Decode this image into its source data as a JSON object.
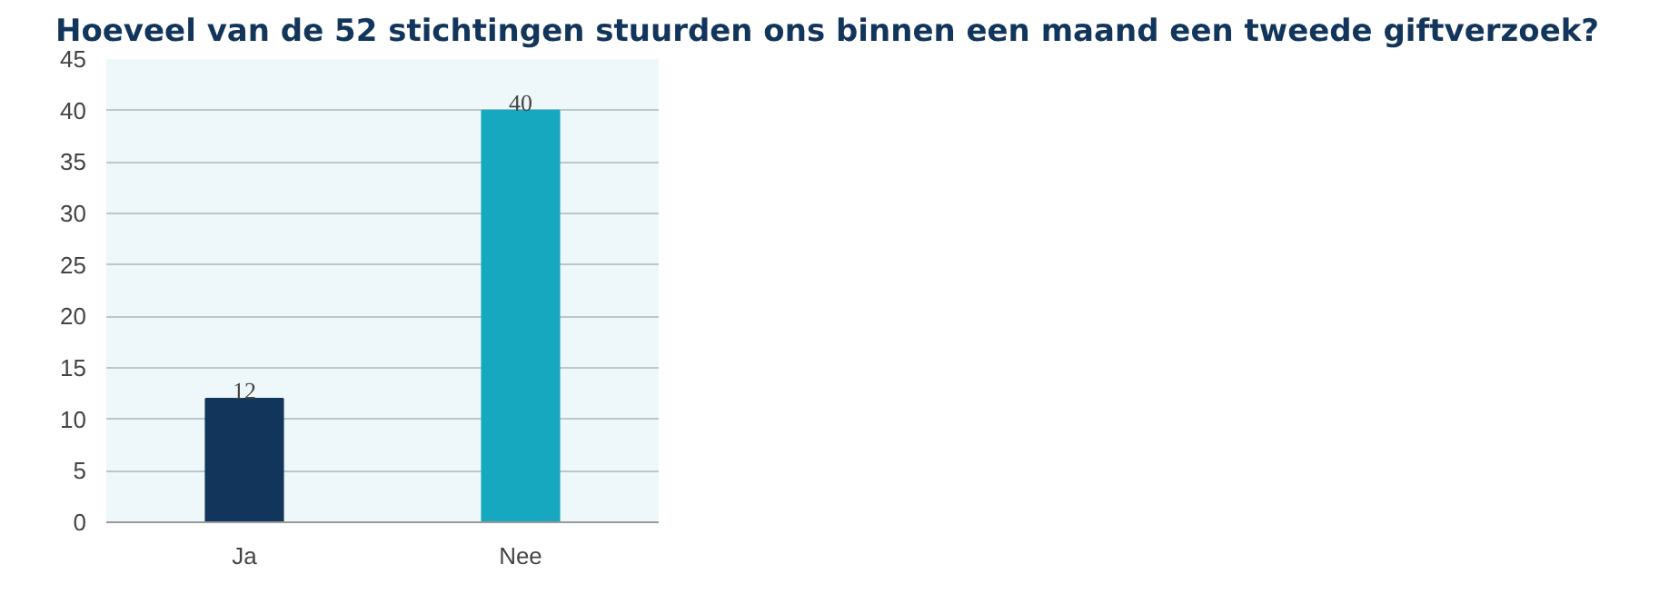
{
  "chart_data": {
    "type": "bar",
    "title": "Hoeveel van de 52 stichtingen stuurden ons binnen een maand een tweede giftverzoek?",
    "categories": [
      "Ja",
      "Nee"
    ],
    "values": [
      12,
      40
    ],
    "colors": [
      "#12355b",
      "#16a8bf"
    ],
    "ylim": [
      0,
      45
    ],
    "yticks": [
      0,
      5,
      10,
      15,
      20,
      25,
      30,
      35,
      40,
      45
    ],
    "grid": "y",
    "data_labels": true
  }
}
